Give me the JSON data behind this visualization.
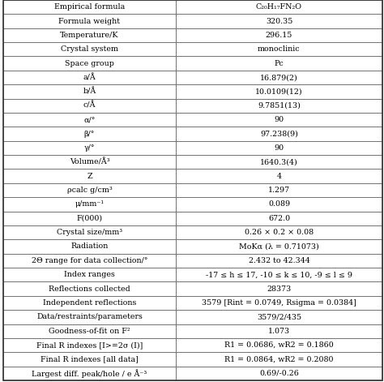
{
  "rows": [
    [
      "Empirical formula",
      "C₂₀H₁₇FN₂O"
    ],
    [
      "Formula weight",
      "320.35"
    ],
    [
      "Temperature/K",
      "296.15"
    ],
    [
      "Crystal system",
      "monoclinic"
    ],
    [
      "Space group",
      "Pc"
    ],
    [
      "a/Å",
      "16.879(2)"
    ],
    [
      "b/Å",
      "10.0109(12)"
    ],
    [
      "c/Å",
      "9.7851(13)"
    ],
    [
      "α/°",
      "90"
    ],
    [
      "β/°",
      "97.238(9)"
    ],
    [
      "γ/°",
      "90"
    ],
    [
      "Volume/Å³",
      "1640.3(4)"
    ],
    [
      "Z",
      "4"
    ],
    [
      "ρcalc g/cm³",
      "1.297"
    ],
    [
      "μ/mm⁻¹",
      "0.089"
    ],
    [
      "F(000)",
      "672.0"
    ],
    [
      "Crystal size/mm³",
      "0.26 × 0.2 × 0.08"
    ],
    [
      "Radiation",
      "MoKα (λ = 0.71073)"
    ],
    [
      "2Θ range for data collection/°",
      "2.432 to 42.344"
    ],
    [
      "Index ranges",
      "-17 ≤ h ≤ 17, -10 ≤ k ≤ 10, -9 ≤ l ≤ 9"
    ],
    [
      "Reflections collected",
      "28373"
    ],
    [
      "Independent reflections",
      "3579 [Rint = 0.0749, Rsigma = 0.0384]"
    ],
    [
      "Data/restraints/parameters",
      "3579/2/435"
    ],
    [
      "Goodness-of-fit on F²",
      "1.073"
    ],
    [
      "Final R indexes [I>=2σ (I)]",
      "R1 = 0.0686, wR2 = 0.1860"
    ],
    [
      "Final R indexes [all data]",
      "R1 = 0.0864, wR2 = 0.2080"
    ],
    [
      "Largest diff. peak/hole / e Å⁻³",
      "0.69/-0.26"
    ]
  ],
  "col_split": 0.455,
  "bg_color": "#ffffff",
  "border_color": "#555555",
  "text_color": "#000000",
  "font_size": 6.8,
  "header_font_size": 6.8
}
